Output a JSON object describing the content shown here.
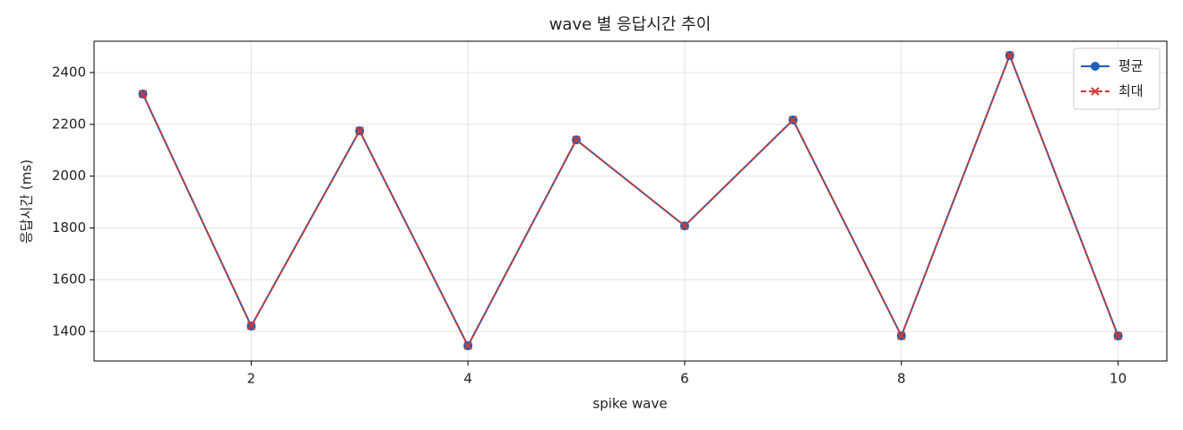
{
  "chart_data": {
    "type": "line",
    "title": "wave 별 응답시간 추이",
    "x_label": "spike wave",
    "y_label": "응답시간 (ms)",
    "x": [
      1,
      2,
      3,
      4,
      5,
      6,
      7,
      8,
      9,
      10
    ],
    "series": [
      {
        "name": "평균",
        "color": "#1f5fb5",
        "marker": "o",
        "linestyle": "solid",
        "values": [
          2317,
          1421,
          2175,
          1345,
          2140,
          1808,
          2217,
          1383,
          2466,
          1383
        ]
      },
      {
        "name": "최대",
        "color": "#d03a36",
        "marker": "x",
        "linestyle": "dashed",
        "values": [
          2317,
          1421,
          2175,
          1345,
          2140,
          1808,
          2217,
          1383,
          2466,
          1383
        ]
      }
    ],
    "xlim": [
      0.55,
      10.45
    ],
    "ylim": [
      1286,
      2521
    ],
    "xticks": [
      2,
      4,
      6,
      8,
      10
    ],
    "yticks": [
      1400,
      1600,
      1800,
      2000,
      2200,
      2400
    ],
    "grid": true,
    "legend": "upper right"
  }
}
